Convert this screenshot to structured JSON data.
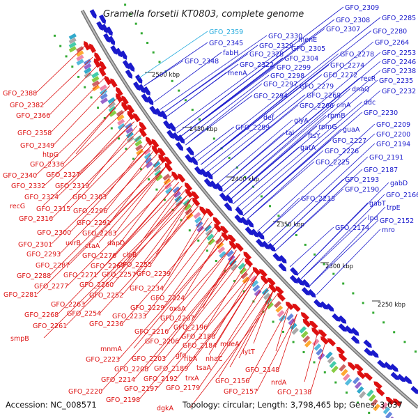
{
  "title": "Gramella forsetii KT0803, complete genome",
  "footer": {
    "accession": "Accession: NC_008571",
    "summary": "Topology: circular; Length: 3,798,465 bp; Genes: 3,637"
  },
  "colors": {
    "forward": "#1a1acc",
    "reverse": "#dd1111",
    "highlight": "#22aadd",
    "backbone": "#888888"
  },
  "kbp_labels": [
    "2500 kbp",
    "2450 kbp",
    "2400 kbp",
    "2350 kbp",
    "2300 kbp",
    "2250 kbp"
  ],
  "forward_genes": [
    "GFO_2359",
    "GFO_2345",
    "fabH",
    "GFO_2348",
    "GFO_2330",
    "menE",
    "GFO_2329",
    "GFO_2305",
    "GFO_2328",
    "GFO_2304",
    "GFO_2322",
    "GFO_2299",
    "menA",
    "GFO_2298",
    "GFO_2297",
    "GFO_2279",
    "GFO_2294",
    "GFO_2269",
    "GFO_2266",
    "cinA",
    "def",
    "GFO_2289",
    "glyA",
    "rpmB",
    "tal",
    "rpmG",
    "ftsY",
    "guaA",
    "gatA",
    "GFO_2227",
    "GFO_2226",
    "GFO_2225",
    "GFO_2309",
    "GFO_2308",
    "GFO_2307",
    "GFO_2285",
    "GFO_2280",
    "GFO_2278",
    "GFO_2274",
    "GFO_2272",
    "recR",
    "dnaQ",
    "ddc",
    "GFO_2264",
    "GFO_2253",
    "GFO_2246",
    "GFO_2238",
    "GFO_2235",
    "GFO_2232",
    "GFO_2230",
    "GFO_2209",
    "GFO_2200",
    "GFO_2194",
    "GFO_2191",
    "GFO_2187",
    "GFO_2193",
    "GFO_2190",
    "GFO_2213",
    "GFO_2174",
    "gabD",
    "GFO_2166",
    "gabT",
    "trpE",
    "lpd",
    "GFO_2152",
    "mro"
  ],
  "reverse_genes": [
    "GFO_2388",
    "GFO_2382",
    "GFO_2366",
    "GFO_2358",
    "GFO_2349",
    "htpG",
    "GFO_2336",
    "GFO_2340",
    "GFO_2327",
    "GFO_2332",
    "GFO_2319",
    "GFO_2324",
    "recG",
    "GFO_2315",
    "GFO_2316",
    "GFO_2303",
    "GFO_2296",
    "GFO_2291",
    "GFO_2300",
    "GFO_2283",
    "uvrB",
    "ctaA",
    "dapD",
    "GFO_2301",
    "GFO_2293",
    "GFO_2276",
    "clpB",
    "GFO_2287",
    "GFO_2267",
    "GFO_2255",
    "GFO_2288",
    "GFO_2271",
    "GFO_2257",
    "GFO_2239",
    "GFO_2277",
    "GFO_2260",
    "GFO_2281",
    "GFO_2252",
    "GFO_2234",
    "GFO_2263",
    "GFO_2224",
    "GFO_2268",
    "GFO_2254",
    "GFO_2229",
    "oxaA",
    "GFO_2261",
    "GFO_2233",
    "GFO_2207",
    "GFO_2236",
    "GFO_2196",
    "smpB",
    "GFO_2216",
    "GFO_2188",
    "GFO_2206",
    "GFO_2184",
    "mdeA",
    "mnmA",
    "gfo",
    "GFO_2223",
    "GFO_2203",
    "ribA",
    "nhaC",
    "lytT",
    "GFO_2208",
    "GFO_2189",
    "tsaA",
    "GFO_2148",
    "GFO_2214",
    "GFO_2192",
    "trxA",
    "GFO_2156",
    "nrdA",
    "GFO_2220",
    "GFO_2197",
    "GFO_2179",
    "GFO_2157",
    "GFO_2138",
    "GFO_2198",
    "dgkA"
  ]
}
